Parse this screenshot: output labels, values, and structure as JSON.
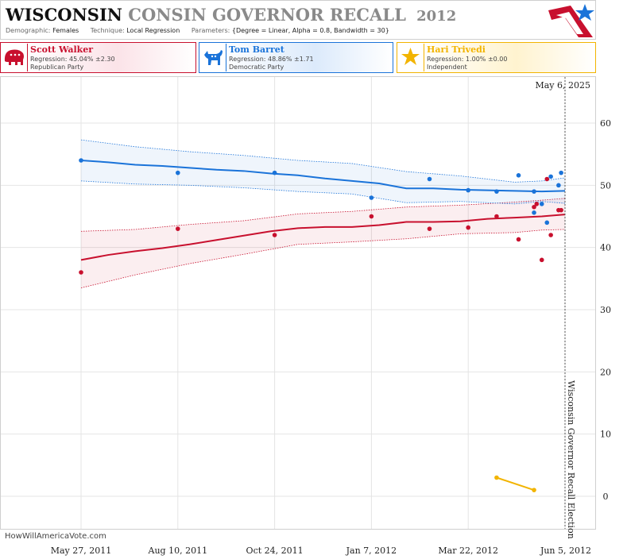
{
  "header": {
    "title_bold": "WISCONSIN",
    "title_rest": "CONSIN GOVERNOR RECALL",
    "title_year": "2012",
    "demographic_label": "Demographic:",
    "demographic_value": "Females",
    "technique_label": "Technique:",
    "technique_value": "Local Regression",
    "parameters_label": "Parameters:",
    "parameters_value": "{Degree = Linear, Alpha = 0.8, Bandwidth = 30}"
  },
  "candidates": [
    {
      "name": "Scott Walker",
      "regression": "Regression: 45.04% ±2.30",
      "party": "Republican Party",
      "color": "#c8102e",
      "icon": "elephant-icon"
    },
    {
      "name": "Tom Barret",
      "regression": "Regression: 48.86% ±1.71",
      "party": "Democratic Party",
      "color": "#1a73d9",
      "icon": "donkey-icon"
    },
    {
      "name": "Hari Trivedi",
      "regression": "Regression: 1.00% ±0.00",
      "party": "Independent",
      "color": "#f2b400",
      "icon": "star-icon"
    }
  ],
  "chart_data": {
    "type": "scatter",
    "x_tick_labels": [
      "May 27, 2011",
      "Aug 10, 2011",
      "Oct 24, 2011",
      "Jan 7, 2012",
      "Mar 22, 2012",
      "Jun 5, 2012"
    ],
    "x_range": [
      "2011-05-27",
      "2012-06-05"
    ],
    "y_ticks": [
      0,
      10,
      20,
      30,
      40,
      50,
      60
    ],
    "ylim": [
      -5,
      65
    ],
    "date_label": "May 6, 2025",
    "election_label": "Wisconsin Governor Recall Election",
    "election_date": "2012-06-05",
    "watermark": "HowWillAmericaVote.com",
    "grid": true,
    "series": [
      {
        "name": "Scott Walker",
        "color": "#c8102e",
        "points": [
          [
            "2011-05-27",
            36
          ],
          [
            "2011-08-10",
            43
          ],
          [
            "2011-10-24",
            42
          ],
          [
            "2012-01-07",
            45
          ],
          [
            "2012-02-21",
            43
          ],
          [
            "2012-03-22",
            43.2
          ],
          [
            "2012-04-13",
            45
          ],
          [
            "2012-04-30",
            41.3
          ],
          [
            "2012-05-12",
            46.5
          ],
          [
            "2012-05-14",
            47
          ],
          [
            "2012-05-18",
            38
          ],
          [
            "2012-05-22",
            51
          ],
          [
            "2012-05-25",
            42
          ],
          [
            "2012-05-31",
            46
          ],
          [
            "2012-06-02",
            46
          ]
        ],
        "trend": [
          [
            "2011-05-27",
            38
          ],
          [
            "2011-06-17",
            38.8
          ],
          [
            "2011-07-08",
            39.4
          ],
          [
            "2011-07-29",
            39.9
          ],
          [
            "2011-08-19",
            40.5
          ],
          [
            "2011-09-09",
            41.2
          ],
          [
            "2011-09-30",
            41.9
          ],
          [
            "2011-10-21",
            42.6
          ],
          [
            "2011-11-11",
            43.1
          ],
          [
            "2011-12-02",
            43.3
          ],
          [
            "2011-12-23",
            43.3
          ],
          [
            "2012-01-13",
            43.6
          ],
          [
            "2012-02-03",
            44.1
          ],
          [
            "2012-02-24",
            44.1
          ],
          [
            "2012-03-16",
            44.2
          ],
          [
            "2012-04-06",
            44.6
          ],
          [
            "2012-04-27",
            44.8
          ],
          [
            "2012-05-18",
            45.0
          ],
          [
            "2012-06-05",
            45.3
          ]
        ],
        "band_upper": [
          [
            "2011-05-27",
            42.6
          ],
          [
            "2011-07-08",
            42.9
          ],
          [
            "2011-08-19",
            43.7
          ],
          [
            "2011-09-30",
            44.3
          ],
          [
            "2011-11-11",
            45.4
          ],
          [
            "2011-12-23",
            45.8
          ],
          [
            "2012-02-03",
            46.5
          ],
          [
            "2012-03-16",
            46.8
          ],
          [
            "2012-04-27",
            47.3
          ],
          [
            "2012-05-18",
            47.6
          ],
          [
            "2012-06-05",
            47.9
          ]
        ],
        "band_lower": [
          [
            "2011-05-27",
            33.5
          ],
          [
            "2011-07-08",
            35.6
          ],
          [
            "2011-08-19",
            37.4
          ],
          [
            "2011-09-30",
            38.9
          ],
          [
            "2011-11-11",
            40.5
          ],
          [
            "2011-12-23",
            40.9
          ],
          [
            "2012-02-03",
            41.4
          ],
          [
            "2012-03-16",
            42.2
          ],
          [
            "2012-04-27",
            42.4
          ],
          [
            "2012-05-18",
            42.8
          ],
          [
            "2012-06-05",
            42.9
          ]
        ]
      },
      {
        "name": "Tom Barret",
        "color": "#1a73d9",
        "points": [
          [
            "2011-05-27",
            54
          ],
          [
            "2011-08-10",
            52
          ],
          [
            "2011-10-24",
            52
          ],
          [
            "2012-01-07",
            48
          ],
          [
            "2012-02-21",
            51
          ],
          [
            "2012-03-22",
            49.2
          ],
          [
            "2012-04-13",
            49
          ],
          [
            "2012-04-30",
            51.6
          ],
          [
            "2012-05-12",
            49
          ],
          [
            "2012-05-12",
            45.6
          ],
          [
            "2012-05-18",
            47
          ],
          [
            "2012-05-22",
            44
          ],
          [
            "2012-05-25",
            51.4
          ],
          [
            "2012-05-31",
            50
          ],
          [
            "2012-06-02",
            52
          ]
        ],
        "trend": [
          [
            "2011-05-27",
            54
          ],
          [
            "2011-06-17",
            53.7
          ],
          [
            "2011-07-08",
            53.3
          ],
          [
            "2011-07-29",
            53.1
          ],
          [
            "2011-08-19",
            52.8
          ],
          [
            "2011-09-09",
            52.5
          ],
          [
            "2011-09-30",
            52.3
          ],
          [
            "2011-10-21",
            51.9
          ],
          [
            "2011-11-11",
            51.6
          ],
          [
            "2011-12-02",
            51.1
          ],
          [
            "2011-12-23",
            50.7
          ],
          [
            "2012-01-13",
            50.3
          ],
          [
            "2012-02-03",
            49.5
          ],
          [
            "2012-02-24",
            49.5
          ],
          [
            "2012-03-16",
            49.3
          ],
          [
            "2012-04-06",
            49.2
          ],
          [
            "2012-04-27",
            49.1
          ],
          [
            "2012-05-18",
            49.0
          ],
          [
            "2012-06-05",
            49.1
          ]
        ],
        "band_upper": [
          [
            "2011-05-27",
            57.3
          ],
          [
            "2011-07-08",
            56.2
          ],
          [
            "2011-08-19",
            55.4
          ],
          [
            "2011-09-30",
            54.8
          ],
          [
            "2011-11-11",
            54.0
          ],
          [
            "2011-12-23",
            53.5
          ],
          [
            "2012-02-03",
            52.2
          ],
          [
            "2012-03-16",
            51.5
          ],
          [
            "2012-04-27",
            50.5
          ],
          [
            "2012-05-18",
            50.7
          ],
          [
            "2012-06-05",
            51.2
          ]
        ],
        "band_lower": [
          [
            "2011-05-27",
            50.7
          ],
          [
            "2011-07-08",
            50.2
          ],
          [
            "2011-08-19",
            50.0
          ],
          [
            "2011-09-30",
            49.6
          ],
          [
            "2011-11-11",
            49.0
          ],
          [
            "2011-12-23",
            48.6
          ],
          [
            "2012-02-03",
            47.2
          ],
          [
            "2012-03-16",
            47.4
          ],
          [
            "2012-04-27",
            47.0
          ],
          [
            "2012-05-18",
            47.4
          ],
          [
            "2012-06-05",
            47.1
          ]
        ]
      },
      {
        "name": "Hari Trivedi",
        "color": "#f2b400",
        "points": [
          [
            "2012-04-13",
            3
          ],
          [
            "2012-05-12",
            1
          ]
        ],
        "trend": [
          [
            "2012-04-13",
            3
          ],
          [
            "2012-05-12",
            1
          ]
        ]
      }
    ]
  }
}
